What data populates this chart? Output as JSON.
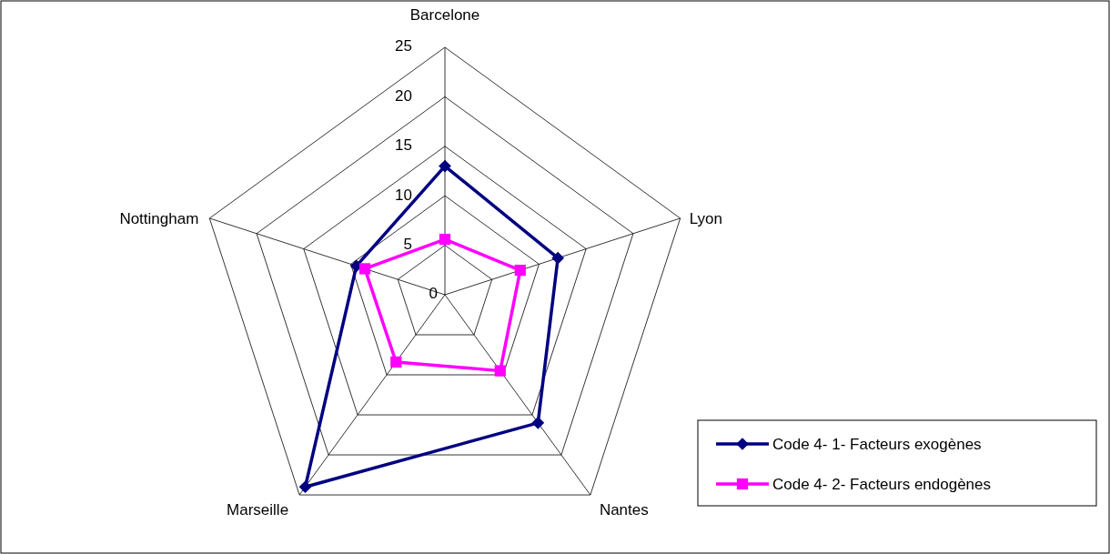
{
  "chart_data": {
    "type": "radar",
    "categories": [
      "Barcelone",
      "Lyon",
      "Nantes",
      "Marseille",
      "Nottingham"
    ],
    "series": [
      {
        "name": "Code 4- 1- Facteurs exogènes",
        "color": "#000080",
        "marker": "diamond",
        "values": [
          13,
          12,
          16,
          24,
          9.4
        ]
      },
      {
        "name": "Code 4- 2- Facteurs endogènes",
        "color": "#ff00ff",
        "marker": "square",
        "values": [
          5.6,
          8,
          9.5,
          8.4,
          8.5
        ]
      }
    ],
    "ylim": [
      0,
      25
    ],
    "yticks": [
      0,
      5,
      10,
      15,
      20,
      25
    ],
    "grid": true,
    "legend": "bottom right"
  }
}
